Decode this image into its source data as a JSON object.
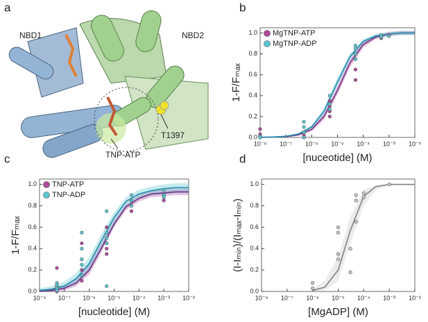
{
  "structure_panel": {
    "label": "a",
    "annotations": [
      "NBD1",
      "NBD2",
      "TNP-ATP",
      "T1397"
    ]
  },
  "chart_data": [
    {
      "type": "scatter",
      "panel": "b",
      "xlabel": "[nuceotide] (M)",
      "ylabel": "1-F/Fₘₐₓ",
      "log_x": true,
      "legend": "upper left",
      "xlim": [
        1e-08,
        0.01
      ],
      "ylim": [
        0,
        1.05
      ],
      "xticks": [
        {
          "value": 1e-08,
          "label": "10⁻⁸"
        },
        {
          "value": 1e-07,
          "label": "10⁻⁷"
        },
        {
          "value": 1e-06,
          "label": "10⁻⁶"
        },
        {
          "value": 1e-05,
          "label": "10⁻⁵"
        },
        {
          "value": 0.0001,
          "label": "10⁻⁴"
        },
        {
          "value": 0.001,
          "label": "10⁻³"
        },
        {
          "value": 0.01,
          "label": "10⁻²"
        }
      ],
      "yticks": [
        {
          "value": 0,
          "label": "0.0"
        },
        0.2,
        0.4,
        0.6,
        0.8,
        {
          "value": 1,
          "label": "1.0"
        }
      ],
      "series": [
        {
          "name": "MgTNP-ATP",
          "color": "#b04a9a",
          "line_color": "#7a3a8c",
          "x": [
            1e-08,
            1e-08,
            1e-08,
            5e-07,
            5e-07,
            5e-07,
            5e-06,
            5e-06,
            5e-06,
            5e-06,
            5e-05,
            5e-05,
            5e-05,
            0.0005,
            0.0005,
            0.001
          ],
          "y": [
            0.08,
            0.03,
            0.0,
            0.05,
            0.0,
            0.02,
            0.35,
            0.3,
            0.25,
            0.2,
            0.8,
            0.65,
            0.55,
            0.97,
            0.95,
            0.98
          ],
          "fit_x": [
            1e-08,
            3e-08,
            1e-07,
            3e-07,
            1e-06,
            3e-06,
            1e-05,
            3e-05,
            0.0001,
            0.0003,
            0.001,
            0.003,
            0.01
          ],
          "fit_y": [
            0.001,
            0.003,
            0.008,
            0.024,
            0.077,
            0.2,
            0.45,
            0.71,
            0.89,
            0.96,
            0.99,
            1.0,
            1.0
          ],
          "band_lower": [
            0.0,
            0.0,
            0.004,
            0.015,
            0.06,
            0.17,
            0.41,
            0.67,
            0.86,
            0.94,
            0.97,
            0.98,
            0.98
          ],
          "band_upper": [
            0.003,
            0.006,
            0.012,
            0.033,
            0.094,
            0.23,
            0.49,
            0.75,
            0.92,
            0.98,
            1.01,
            1.02,
            1.02
          ]
        },
        {
          "name": "MgTNP-ADP",
          "color": "#5cc6d0",
          "line_color": "#2a8fb0",
          "x": [
            1e-08,
            1e-08,
            5e-07,
            5e-07,
            5e-07,
            5e-07,
            5e-06,
            5e-06,
            5e-06,
            5e-05,
            5e-05,
            5e-05,
            5e-05,
            0.0005,
            0.0005,
            0.001
          ],
          "y": [
            0.01,
            0.0,
            0.15,
            0.1,
            0.05,
            0.0,
            0.4,
            0.32,
            0.27,
            0.88,
            0.85,
            0.8,
            0.75,
            0.98,
            0.96,
            0.97
          ],
          "fit_x": [
            1e-08,
            3e-08,
            1e-07,
            3e-07,
            1e-06,
            3e-06,
            1e-05,
            3e-05,
            0.0001,
            0.0003,
            0.001,
            0.003,
            0.01
          ],
          "fit_y": [
            0.001,
            0.003,
            0.011,
            0.032,
            0.1,
            0.25,
            0.53,
            0.77,
            0.92,
            0.97,
            0.99,
            1.0,
            1.0
          ],
          "band_lower": [
            0.0,
            0.001,
            0.007,
            0.024,
            0.085,
            0.22,
            0.49,
            0.74,
            0.9,
            0.95,
            0.97,
            0.98,
            0.98
          ],
          "band_upper": [
            0.003,
            0.006,
            0.015,
            0.04,
            0.115,
            0.28,
            0.57,
            0.8,
            0.94,
            0.99,
            1.01,
            1.02,
            1.02
          ]
        }
      ]
    },
    {
      "type": "scatter",
      "panel": "c",
      "xlabel": "[nucleotide] (M)",
      "ylabel": "1-F/Fₘₐₓ",
      "log_x": true,
      "legend": "upper left",
      "xlim": [
        1e-08,
        0.01
      ],
      "ylim": [
        0,
        1.05
      ],
      "xticks": [
        {
          "value": 1e-08,
          "label": "10⁻⁸"
        },
        {
          "value": 1e-07,
          "label": "10⁻⁷"
        },
        {
          "value": 1e-06,
          "label": "10⁻⁶"
        },
        {
          "value": 1e-05,
          "label": "10⁻⁵"
        },
        {
          "value": 0.0001,
          "label": "10⁻⁴"
        },
        {
          "value": 0.001,
          "label": "10⁻³"
        },
        {
          "value": 0.01,
          "label": "10⁻²"
        }
      ],
      "yticks": [
        {
          "value": 0,
          "label": "0.0"
        },
        0.2,
        0.4,
        0.6,
        0.8,
        {
          "value": 1,
          "label": "1.0"
        }
      ],
      "series": [
        {
          "name": "TNP-ATP",
          "color": "#b04a9a",
          "line_color": "#6a3a8c",
          "x": [
            5e-08,
            5e-08,
            5e-08,
            5e-08,
            5e-07,
            5e-07,
            5e-07,
            5e-07,
            5e-06,
            5e-06,
            5e-06,
            5e-06,
            5e-05,
            5e-05,
            5e-05,
            0.001,
            0.001,
            0.001
          ],
          "y": [
            0.22,
            0.05,
            0.02,
            0.0,
            0.45,
            0.3,
            0.2,
            0.1,
            0.6,
            0.45,
            0.4,
            0.35,
            0.85,
            0.8,
            0.75,
            0.9,
            0.88,
            0.85
          ],
          "fit_x": [
            1e-08,
            3e-08,
            1e-07,
            3e-07,
            1e-06,
            3e-06,
            1e-05,
            3e-05,
            0.0001,
            0.0003,
            0.001,
            0.003,
            0.01
          ],
          "fit_y": [
            0.0,
            0.01,
            0.03,
            0.08,
            0.2,
            0.4,
            0.63,
            0.79,
            0.87,
            0.91,
            0.92,
            0.93,
            0.93
          ],
          "band_lower": [
            0.0,
            0.0,
            0.01,
            0.05,
            0.16,
            0.36,
            0.6,
            0.76,
            0.84,
            0.88,
            0.89,
            0.9,
            0.9
          ],
          "band_upper": [
            0.01,
            0.03,
            0.06,
            0.12,
            0.25,
            0.45,
            0.67,
            0.82,
            0.9,
            0.94,
            0.95,
            0.96,
            0.96
          ]
        },
        {
          "name": "TNP-ADP",
          "color": "#5cc6d0",
          "line_color": "#2a8fb0",
          "x": [
            5e-08,
            5e-08,
            5e-08,
            5e-08,
            5e-07,
            5e-07,
            5e-07,
            5e-07,
            5e-07,
            5e-06,
            5e-06,
            5e-06,
            5e-06,
            5e-06,
            5e-05,
            5e-05,
            5e-05,
            0.001,
            0.001,
            0.001
          ],
          "y": [
            0.08,
            0.06,
            0.03,
            0.01,
            0.55,
            0.4,
            0.3,
            0.25,
            0.15,
            0.75,
            0.55,
            0.5,
            0.45,
            0.05,
            0.9,
            0.85,
            0.8,
            0.95,
            0.9,
            0.88
          ],
          "fit_x": [
            1e-08,
            3e-08,
            1e-07,
            3e-07,
            1e-06,
            3e-06,
            1e-05,
            3e-05,
            0.0001,
            0.0003,
            0.001,
            0.003,
            0.01
          ],
          "fit_y": [
            0.01,
            0.02,
            0.05,
            0.12,
            0.26,
            0.47,
            0.69,
            0.84,
            0.91,
            0.94,
            0.96,
            0.97,
            0.97
          ],
          "band_lower": [
            0.0,
            0.0,
            0.02,
            0.07,
            0.2,
            0.41,
            0.64,
            0.8,
            0.87,
            0.9,
            0.91,
            0.92,
            0.92
          ],
          "band_upper": [
            0.03,
            0.05,
            0.09,
            0.17,
            0.32,
            0.53,
            0.74,
            0.88,
            0.95,
            0.98,
            1.0,
            1.01,
            1.01
          ]
        }
      ]
    },
    {
      "type": "scatter",
      "panel": "d",
      "xlabel": "[MgADP] (M)",
      "ylabel": "(I-Iₘᵢₙ)/(Iₘₐₓ-Iₘᵢₙ)",
      "log_x": true,
      "xlim": [
        1e-08,
        0.01
      ],
      "ylim": [
        0,
        1.05
      ],
      "xticks": [
        {
          "value": 1e-08,
          "label": "10⁻⁸"
        },
        {
          "value": 1e-07,
          "label": "10⁻⁷"
        },
        {
          "value": 1e-06,
          "label": "10⁻⁶"
        },
        {
          "value": 1e-05,
          "label": "10⁻⁵"
        },
        {
          "value": 0.0001,
          "label": "10⁻⁴"
        },
        {
          "value": 0.001,
          "label": "10⁻³"
        },
        {
          "value": 0.01,
          "label": "10⁻²"
        }
      ],
      "yticks": [
        {
          "value": 0,
          "label": "0.0"
        },
        0.2,
        0.4,
        0.6,
        0.8,
        {
          "value": 1,
          "label": "1.0"
        }
      ],
      "series": [
        {
          "color": "#c8c8c8",
          "line_color": "#8a8a8a",
          "x": [
            1e-06,
            1e-06,
            1e-05,
            1e-05,
            1e-05,
            1e-05,
            3e-05,
            3e-05,
            5e-05,
            5e-05,
            5e-05,
            0.0001,
            0.0001,
            0.001
          ],
          "y": [
            0.08,
            0.03,
            0.6,
            0.55,
            0.35,
            0.3,
            0.4,
            0.18,
            0.9,
            0.85,
            0.65,
            0.92,
            0.88,
            1.0
          ],
          "fit_x": [
            1e-06,
            3e-06,
            1e-05,
            3e-05,
            0.0001,
            0.0003,
            0.001,
            0.003,
            0.01
          ],
          "fit_y": [
            0.01,
            0.04,
            0.2,
            0.57,
            0.89,
            0.98,
            1.0,
            1.0,
            1.0
          ],
          "band_lower": [
            0.0,
            0.01,
            0.1,
            0.45,
            0.8,
            0.95,
            0.99,
            1.0,
            1.0
          ],
          "band_upper": [
            0.03,
            0.1,
            0.33,
            0.7,
            0.95,
            0.99,
            1.0,
            1.0,
            1.0
          ]
        }
      ]
    }
  ]
}
